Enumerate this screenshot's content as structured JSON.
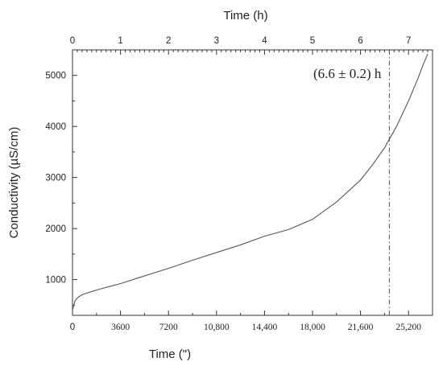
{
  "chart_data": {
    "type": "line",
    "title": "",
    "xlabel": "Time (\")",
    "x2label": "Time (h)",
    "ylabel": "Conductivity (µS/cm)",
    "xlim": [
      0,
      27000
    ],
    "x2lim": [
      0,
      7.5
    ],
    "ylim": [
      300,
      5500
    ],
    "x_ticks": [
      0,
      3600,
      7200,
      10800,
      14400,
      18000,
      21600,
      25200
    ],
    "x_tick_labels": [
      "0",
      "3600",
      "7200",
      "10,800",
      "14,400",
      "18,000",
      "21,600",
      "25,200"
    ],
    "x2_ticks": [
      0,
      1,
      2,
      3,
      4,
      5,
      6,
      7
    ],
    "x2_tick_labels": [
      "0",
      "1",
      "2",
      "3",
      "4",
      "5",
      "6",
      "7"
    ],
    "y_ticks": [
      1000,
      2000,
      3000,
      4000,
      5000
    ],
    "y_tick_labels": [
      "1000",
      "2000",
      "3000",
      "4000",
      "5000"
    ],
    "grid": false,
    "series": [
      {
        "x": [
          0,
          100,
          200,
          400,
          700,
          1000,
          1500,
          2000,
          3000,
          3600,
          5000,
          7200,
          9000,
          10800,
          12600,
          14400,
          16200,
          18000,
          19800,
          21600,
          22500,
          23400,
          23760,
          24300,
          25200,
          25920,
          26280,
          26640
        ],
        "y": [
          400,
          500,
          590,
          650,
          700,
          730,
          770,
          810,
          880,
          920,
          1040,
          1220,
          1380,
          1530,
          1680,
          1850,
          1980,
          2180,
          2520,
          2950,
          3250,
          3580,
          3750,
          4000,
          4500,
          4950,
          5200,
          5420
        ]
      }
    ],
    "reference_line": {
      "x": 23760,
      "style": "dash-dot"
    },
    "annotation": "(6.6 ± 0.2) h"
  }
}
